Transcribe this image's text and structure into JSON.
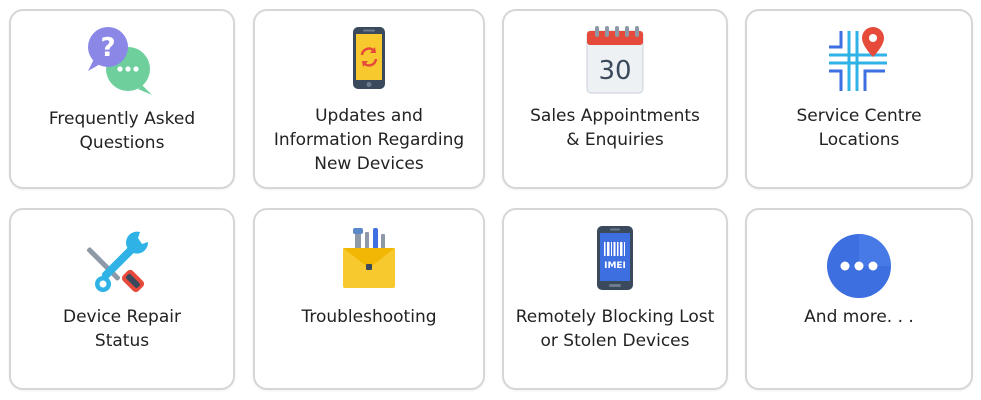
{
  "cards": [
    {
      "name": "faq",
      "lines": [
        "Frequently Asked",
        "Questions"
      ]
    },
    {
      "name": "updates",
      "lines": [
        "Updates and",
        "Information Regarding",
        "New Devices"
      ]
    },
    {
      "name": "sales",
      "lines": [
        "Sales Appointments",
        "& Enquiries"
      ],
      "calendar_day": "30"
    },
    {
      "name": "service-centre",
      "lines": [
        "Service Centre",
        "Locations"
      ]
    },
    {
      "name": "repair",
      "lines": [
        "Device Repair",
        "Status"
      ]
    },
    {
      "name": "troubleshooting",
      "lines": [
        "Troubleshooting"
      ]
    },
    {
      "name": "blocking",
      "lines": [
        "Remotely Blocking Lost",
        "or Stolen Devices"
      ],
      "imei_text": "IMEI"
    },
    {
      "name": "more",
      "lines": [
        "And more. . ."
      ]
    }
  ],
  "colors": {
    "card_border": "#d6d6d6",
    "text": "#222222",
    "purple": "#8a87e6",
    "green": "#6ecf9c",
    "blue": "#3d6fe0",
    "red": "#e64a3b",
    "yellow": "#f7c92e",
    "cyan": "#2fb3e6"
  }
}
